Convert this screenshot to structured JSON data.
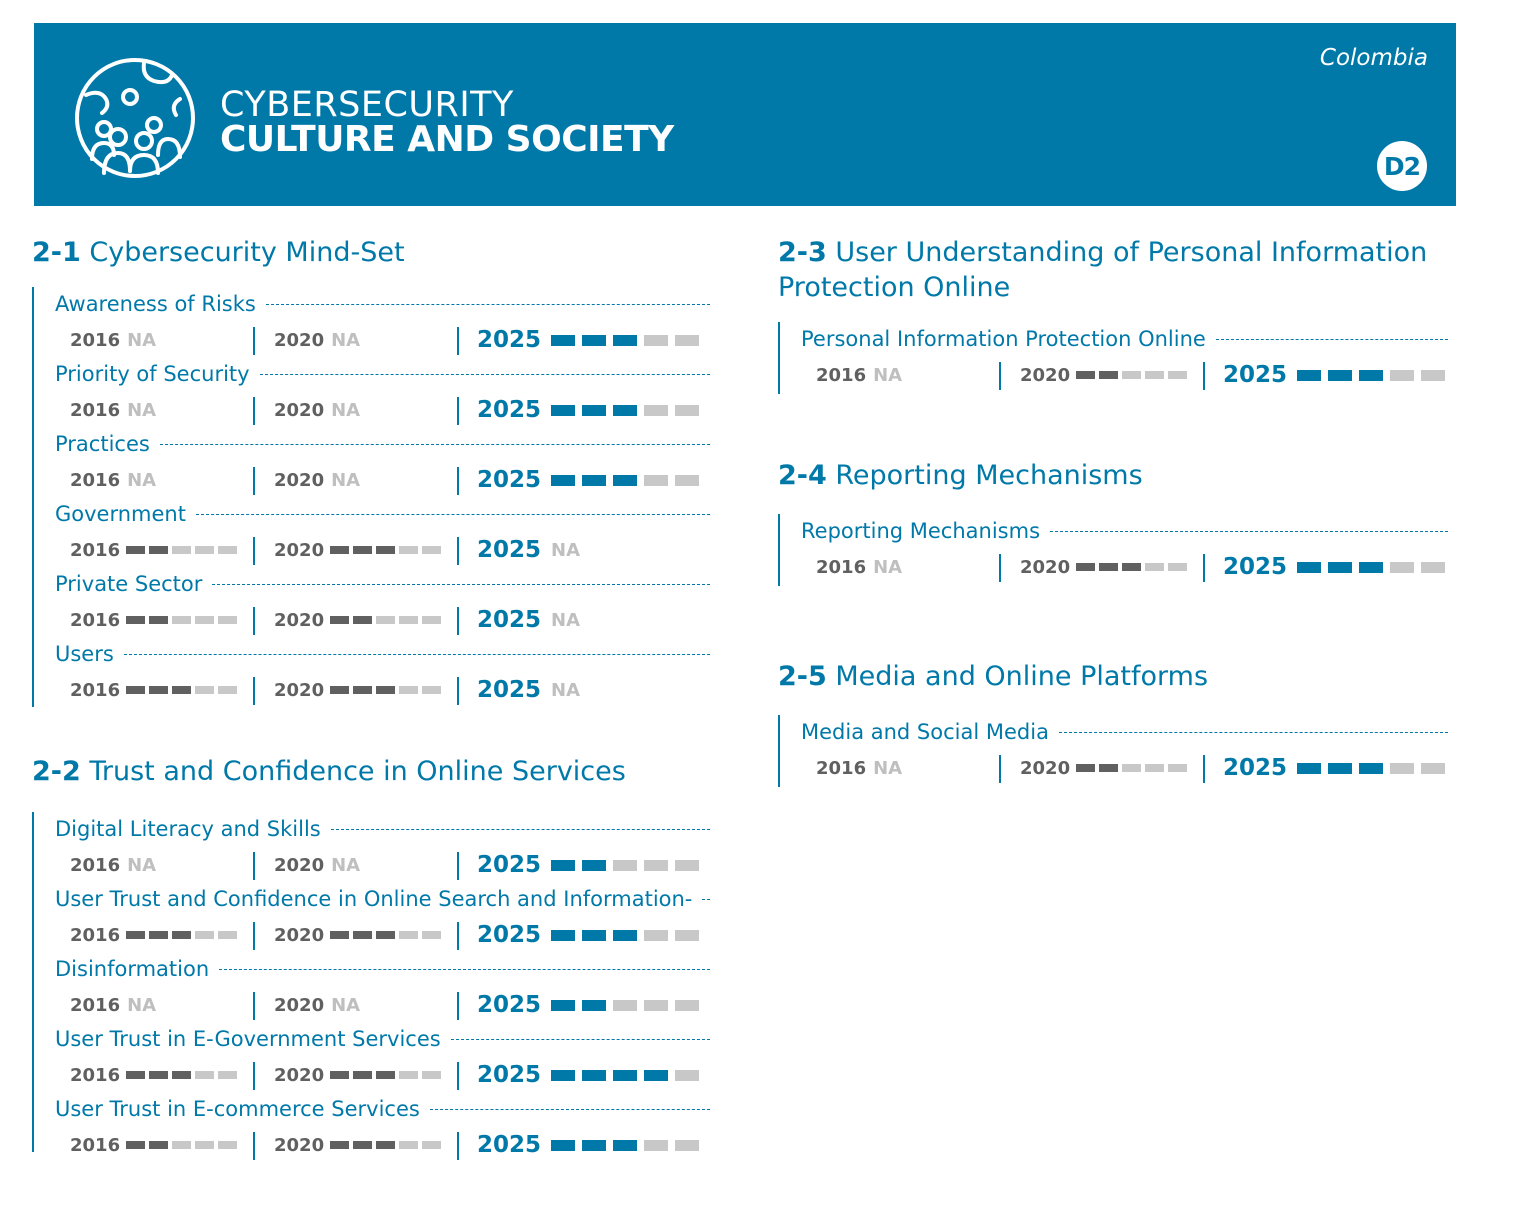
{
  "header": {
    "title_line1": "CYBERSECURITY",
    "title_line2": "CULTURE AND SOCIETY",
    "country": "Colombia",
    "badge": "D2",
    "icon": "globe-people-icon",
    "background_color": "#0079a9"
  },
  "colors": {
    "primary": "#0079a9",
    "filled_past": "#606060",
    "empty": "#c8c8c8",
    "na": "#bfbfbf"
  },
  "na_label": "NA",
  "max_stages": 5,
  "sections": [
    {
      "number": "2-1",
      "title": "Cybersecurity Mind-Set",
      "indicators": [
        {
          "name": "Awareness of Risks",
          "y2016": null,
          "y2020": null,
          "y2025": 3
        },
        {
          "name": "Priority of Security",
          "y2016": null,
          "y2020": null,
          "y2025": 3
        },
        {
          "name": "Practices",
          "y2016": null,
          "y2020": null,
          "y2025": 3
        },
        {
          "name": "Government",
          "y2016": 2,
          "y2020": 3,
          "y2025": null
        },
        {
          "name": "Private Sector",
          "y2016": 2,
          "y2020": 2,
          "y2025": null
        },
        {
          "name": "Users",
          "y2016": 3,
          "y2020": 3,
          "y2025": null
        }
      ]
    },
    {
      "number": "2-2",
      "title": "Trust and Confidence in Online Services",
      "indicators": [
        {
          "name": "Digital Literacy and Skills",
          "y2016": null,
          "y2020": null,
          "y2025": 2
        },
        {
          "name": "User Trust and Confidence in Online Search and Information-",
          "y2016": 3,
          "y2020": 3,
          "y2025": 3
        },
        {
          "name": "Disinformation",
          "y2016": null,
          "y2020": null,
          "y2025": 2
        },
        {
          "name": "User Trust in E-Government Services",
          "y2016": 3,
          "y2020": 3,
          "y2025": 4
        },
        {
          "name": "User Trust in E-commerce Services",
          "y2016": 2,
          "y2020": 3,
          "y2025": 3
        }
      ]
    },
    {
      "number": "2-3",
      "title": "User Understanding of Personal Information Protection Online",
      "indicators": [
        {
          "name": "Personal Information Protection Online",
          "y2016": null,
          "y2020": 2,
          "y2025": 3
        }
      ]
    },
    {
      "number": "2-4",
      "title": "Reporting Mechanisms",
      "indicators": [
        {
          "name": "Reporting Mechanisms",
          "y2016": null,
          "y2020": 3,
          "y2025": 3
        }
      ]
    },
    {
      "number": "2-5",
      "title": "Media and Online Platforms",
      "indicators": [
        {
          "name": "Media and Social Media",
          "y2016": null,
          "y2020": 2,
          "y2025": 3
        }
      ]
    }
  ],
  "years": [
    "2016",
    "2020",
    "2025"
  ]
}
